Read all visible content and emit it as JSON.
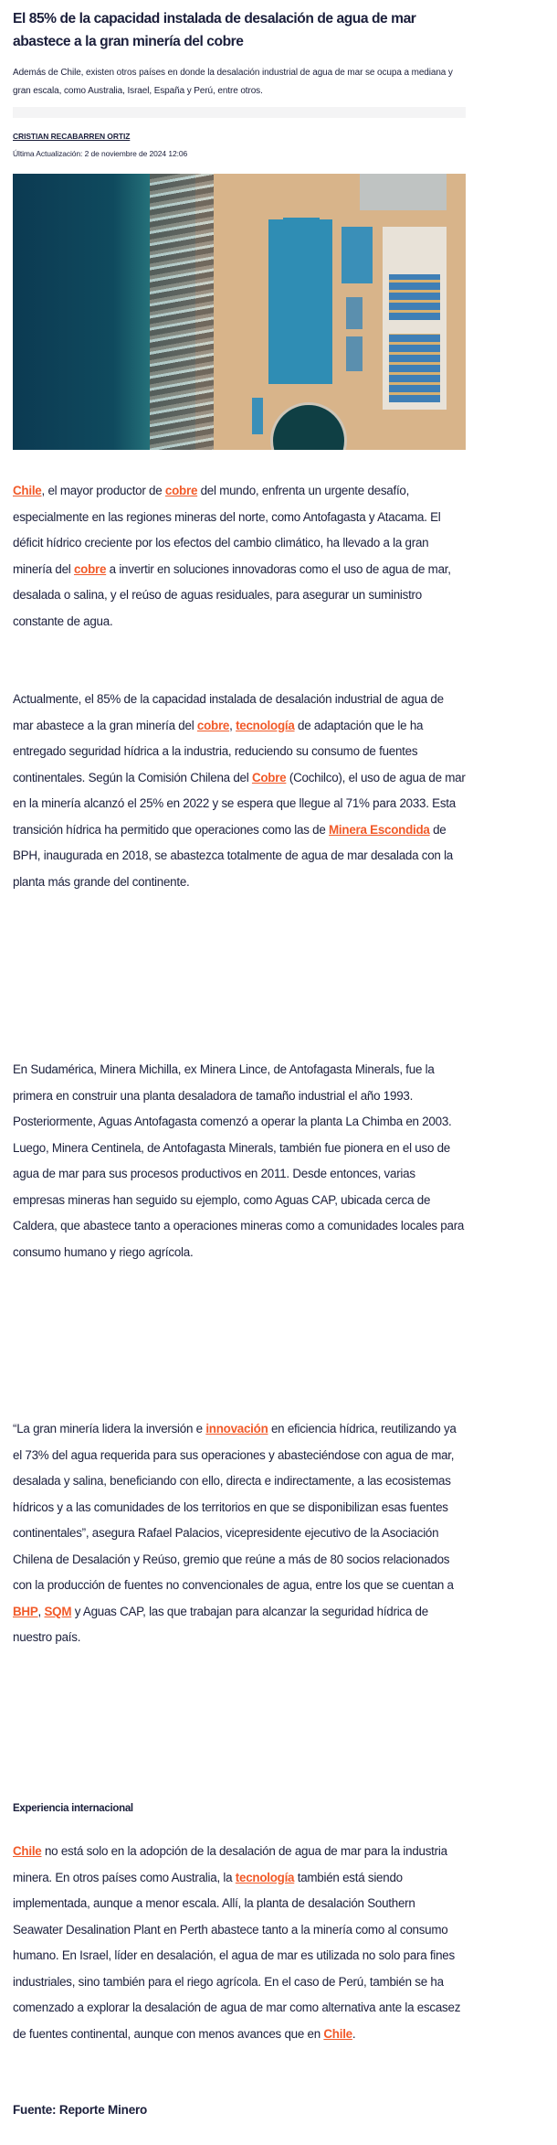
{
  "article": {
    "title": "El 85% de la capacidad instalada de desalación de agua de mar abastece a la gran minería del cobre",
    "subtitle": "Además de Chile, existen otros países en donde la desalación industrial de agua de mar se ocupa a mediana y gran escala, como Australia, Israel, España y Perú, entre otros.",
    "author": "CRISTIAN RECABARREN ORTIZ",
    "updated": "Última Actualización: 2 de noviembre de 2024 12:06",
    "image_alt": "aerial-desalination-plant-coast",
    "link_color": "#f15a29",
    "text_color": "#1b1f3b",
    "paragraphs": {
      "p1": [
        {
          "text": "Chile",
          "link": true
        },
        {
          "text": ", el mayor productor de "
        },
        {
          "text": "cobre",
          "link": true
        },
        {
          "text": " del mundo, enfrenta un urgente desafío, especialmente en las regiones mineras del norte, como Antofagasta y Atacama. El déficit hídrico creciente por los efectos del cambio climático, ha llevado a la gran minería del "
        },
        {
          "text": "cobre",
          "link": true
        },
        {
          "text": " a invertir en soluciones innovadoras como el uso de agua de mar, desalada o salina, y el reúso de aguas residuales, para asegurar un suministro constante de agua."
        }
      ],
      "p2": [
        {
          "text": "Actualmente, el 85% de la capacidad instalada de desalación industrial de agua de mar abastece a la gran minería del "
        },
        {
          "text": "cobre",
          "link": true
        },
        {
          "text": ", "
        },
        {
          "text": "tecnología",
          "link": true
        },
        {
          "text": " de adaptación que le ha entregado seguridad hídrica a la industria, reduciendo su consumo de fuentes continentales. Según la Comisión Chilena del "
        },
        {
          "text": "Cobre",
          "link": true
        },
        {
          "text": " (Cochilco), el uso de agua de mar en la minería alcanzó el 25% en 2022 y se espera que llegue al 71% para 2033. Esta transición hídrica ha permitido que operaciones como las de "
        },
        {
          "text": "Minera Escondida",
          "link": true
        },
        {
          "text": " de BPH, inaugurada en 2018, se abastezca totalmente de agua de mar desalada con la planta más grande del continente."
        }
      ],
      "p3": [
        {
          "text": "En Sudamérica, Minera Michilla, ex Minera Lince, de Antofagasta Minerals, fue la primera en construir una planta desaladora de tamaño industrial el año 1993. Posteriormente, Aguas Antofagasta comenzó a operar la planta La Chimba en 2003. Luego, Minera Centinela, de Antofagasta Minerals, también fue pionera en el uso de agua de mar para sus procesos productivos en 2011. Desde entonces, varias empresas mineras han seguido su ejemplo, como Aguas CAP, ubicada cerca de Caldera, que abastece tanto a operaciones mineras como a comunidades locales para consumo humano y riego agrícola."
        }
      ],
      "p4": [
        {
          "text": "“La gran minería lidera la inversión e "
        },
        {
          "text": "innovación",
          "link": true
        },
        {
          "text": " en eficiencia hídrica, reutilizando ya el 73% del agua requerida para sus operaciones y abasteciéndose con agua de mar, desalada y salina, beneficiando con ello, directa e indirectamente, a las ecosistemas hídricos y a las comunidades de los territorios en que se disponibilizan esas fuentes continentales”, asegura Rafael Palacios, vicepresidente ejecutivo de la Asociación Chilena de Desalación y Reúso, gremio que reúne a más de 80 socios relacionados con la producción de fuentes no convencionales de agua, entre los que se cuentan a "
        },
        {
          "text": "BHP",
          "link": true
        },
        {
          "text": ", "
        },
        {
          "text": "SQM",
          "link": true
        },
        {
          "text": " y Aguas CAP, las que trabajan para alcanzar la seguridad hídrica de nuestro país."
        }
      ],
      "p5": [
        {
          "text": "Chile",
          "link": true
        },
        {
          "text": " no está solo en la adopción de la desalación de agua de mar para la industria minera. En otros países como Australia, la "
        },
        {
          "text": "tecnología",
          "link": true
        },
        {
          "text": " también está siendo implementada, aunque a menor escala. Allí, la planta de desalación Southern Seawater Desalination Plant en Perth abastece tanto a la minería como al consumo humano. En Israel, líder en desalación, el agua de mar es utilizada no solo para fines industriales, sino también para el riego agrícola. En el caso de Perú, también se ha comenzado a explorar la desalación de agua de mar como alternativa ante la escasez de fuentes continental, aunque con menos avances que en "
        },
        {
          "text": "Chile",
          "link": true
        },
        {
          "text": "."
        }
      ]
    },
    "section_heading": "Experiencia internacional",
    "source": "Fuente: Reporte Minero"
  }
}
